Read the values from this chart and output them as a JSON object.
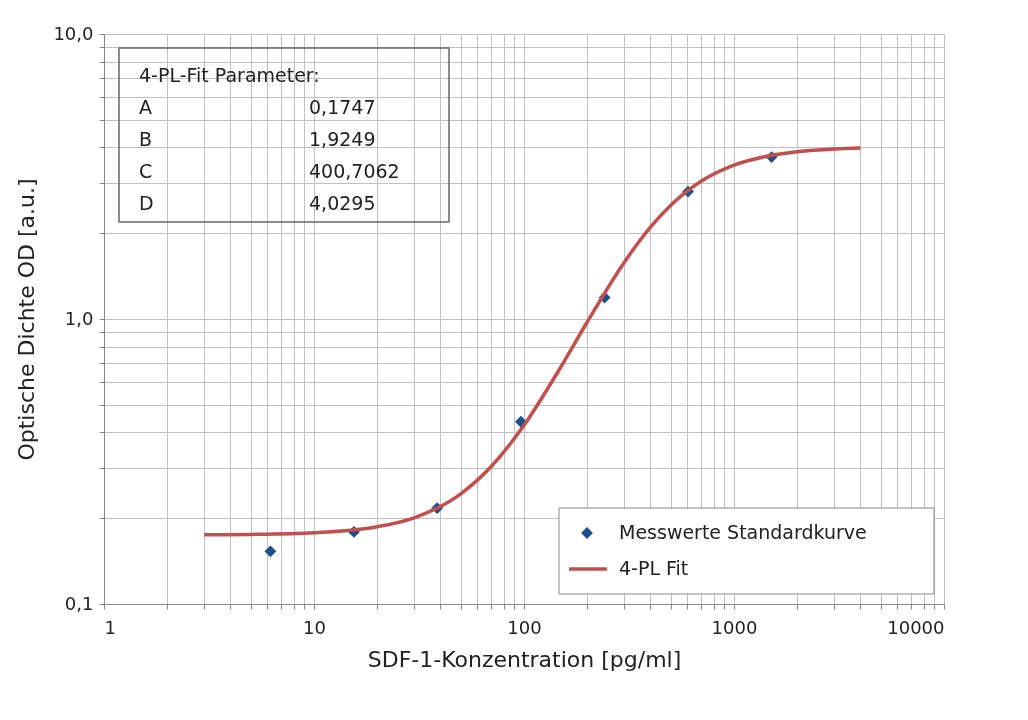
{
  "chart_data": {
    "type": "scatter",
    "xlabel": "SDF-1-Konzentration  [pg/ml]",
    "ylabel": "Optische Dichte OD [a.u.]",
    "log": "xy",
    "grid": true,
    "legend": "bottom right",
    "marker": "diamond",
    "xlim": [
      1,
      10000
    ],
    "ylim": [
      0.1,
      10
    ],
    "xticks": [
      1,
      {
        "value": 2,
        "label": null
      },
      {
        "value": 3,
        "label": null
      },
      {
        "value": 4,
        "label": null
      },
      {
        "value": 5,
        "label": null
      },
      {
        "value": 6,
        "label": null
      },
      {
        "value": 7,
        "label": null
      },
      {
        "value": 8,
        "label": null
      },
      {
        "value": 9,
        "label": null
      },
      10,
      {
        "value": 20,
        "label": null
      },
      {
        "value": 30,
        "label": null
      },
      {
        "value": 40,
        "label": null
      },
      {
        "value": 50,
        "label": null
      },
      {
        "value": 60,
        "label": null
      },
      {
        "value": 70,
        "label": null
      },
      {
        "value": 80,
        "label": null
      },
      {
        "value": 90,
        "label": null
      },
      100,
      {
        "value": 200,
        "label": null
      },
      {
        "value": 300,
        "label": null
      },
      {
        "value": 400,
        "label": null
      },
      {
        "value": 500,
        "label": null
      },
      {
        "value": 600,
        "label": null
      },
      {
        "value": 700,
        "label": null
      },
      {
        "value": 800,
        "label": null
      },
      {
        "value": 900,
        "label": null
      },
      1000,
      {
        "value": 2000,
        "label": null
      },
      {
        "value": 3000,
        "label": null
      },
      {
        "value": 4000,
        "label": null
      },
      {
        "value": 5000,
        "label": null
      },
      {
        "value": 6000,
        "label": null
      },
      {
        "value": 7000,
        "label": null
      },
      {
        "value": 8000,
        "label": null
      },
      {
        "value": 9000,
        "label": null
      },
      10000
    ],
    "yticks": [
      {
        "value": 0.1,
        "label": "0,1"
      },
      {
        "value": 0.2,
        "label": null
      },
      {
        "value": 0.3,
        "label": null
      },
      {
        "value": 0.4,
        "label": null
      },
      {
        "value": 0.5,
        "label": null
      },
      {
        "value": 0.6,
        "label": null
      },
      {
        "value": 0.7,
        "label": null
      },
      {
        "value": 0.8,
        "label": null
      },
      {
        "value": 0.9,
        "label": null
      },
      {
        "value": 1,
        "label": "1,0"
      },
      {
        "value": 2,
        "label": null
      },
      {
        "value": 3,
        "label": null
      },
      {
        "value": 4,
        "label": null
      },
      {
        "value": 5,
        "label": null
      },
      {
        "value": 6,
        "label": null
      },
      {
        "value": 7,
        "label": null
      },
      {
        "value": 8,
        "label": null
      },
      {
        "value": 9,
        "label": null
      },
      {
        "value": 10,
        "label": "10,0"
      }
    ],
    "series": [
      {
        "name": "Messwerte Standardkurve",
        "color": "#1f4e8c",
        "x": [
          6.2,
          15.5,
          38.6,
          96.7,
          242,
          604,
          1510
        ],
        "values": [
          0.153,
          0.179,
          0.217,
          0.436,
          1.19,
          2.8,
          3.7
        ]
      },
      {
        "name": "4-PL Fit",
        "type": "line",
        "color": "#c0504d",
        "marker": "none",
        "line_style": "solid",
        "x": [
          3,
          5,
          10,
          20,
          30,
          50,
          70,
          100,
          150,
          200,
          300,
          400,
          500,
          700,
          1000,
          1500,
          2000,
          3000,
          4000
        ],
        "values": [
          0.175,
          0.1755,
          0.1779,
          0.1867,
          0.2007,
          0.2436,
          0.3043,
          0.4239,
          0.68,
          0.976,
          1.579,
          2.099,
          2.507,
          3.048,
          3.464,
          3.748,
          3.862,
          3.951,
          3.984
        ]
      }
    ],
    "annotations": [
      "4-PL-Fit Parameter:",
      "A",
      "0,1747",
      "B",
      "1,9249",
      "C",
      "400,7062",
      "D",
      "4,0295"
    ]
  }
}
